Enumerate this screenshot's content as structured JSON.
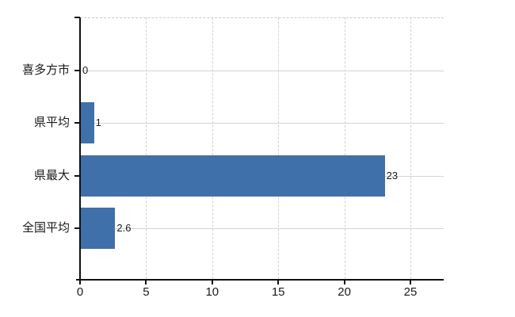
{
  "chart_data": {
    "type": "bar",
    "orientation": "horizontal",
    "title": "",
    "categories": [
      "喜多方市",
      "県平均",
      "県最大",
      "全国平均"
    ],
    "values": [
      0,
      1,
      23,
      2.6
    ],
    "value_labels": [
      "0",
      "1",
      "23",
      "2.6"
    ],
    "x_ticks": [
      "0",
      "5",
      "10",
      "15",
      "20",
      "25"
    ],
    "x_tick_values": [
      0,
      5,
      10,
      15,
      20,
      25
    ],
    "xlim": [
      0,
      27.5
    ],
    "ylabel": "",
    "xlabel": "",
    "grid": "on",
    "legend": "none",
    "colors": {
      "bar": "#4070a9",
      "axis": "#111111",
      "grid_horizontal": "#cfd6cf",
      "grid_vertical": "#d4cfd4",
      "plot_border": "#c9c9c9",
      "text": "#1a1a1a",
      "background": "#ffffff"
    }
  }
}
